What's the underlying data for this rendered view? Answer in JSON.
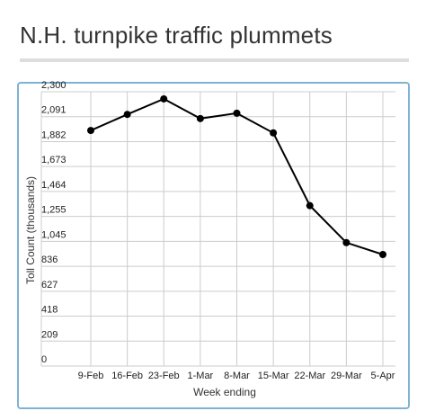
{
  "page": {
    "title": "N.H. turnpike traffic plummets"
  },
  "colors": {
    "frame": "#7fb3d5",
    "line": "#000000",
    "grid": "#cccccc"
  },
  "chart_data": {
    "type": "line",
    "title": "N.H. turnpike traffic plummets",
    "xlabel": "Week ending",
    "ylabel": "Toll Count (thousands)",
    "categories": [
      "9-Feb",
      "16-Feb",
      "23-Feb",
      "1-Mar",
      "8-Mar",
      "15-Mar",
      "22-Mar",
      "29-Mar",
      "5-Apr"
    ],
    "values": [
      1975,
      2110,
      2240,
      2075,
      2120,
      1955,
      1345,
      1035,
      935
    ],
    "ylim": [
      0,
      2300
    ],
    "yticks": [
      "0",
      "209",
      "418",
      "627",
      "836",
      "1,045",
      "1,255",
      "1,464",
      "1,673",
      "1,882",
      "2,091",
      "2,300"
    ],
    "grid": true,
    "legend": "none"
  }
}
